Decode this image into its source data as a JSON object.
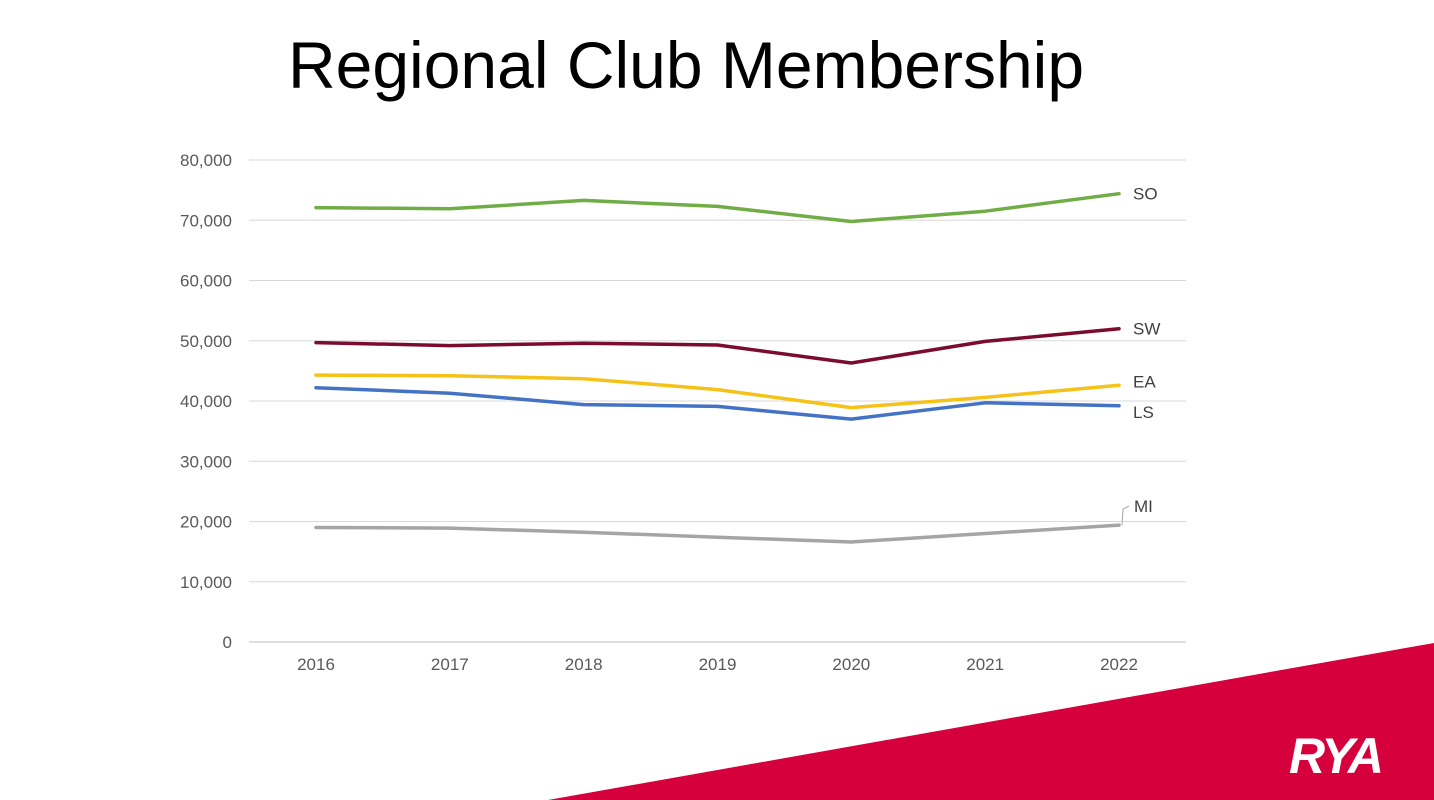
{
  "slide": {
    "title": "Regional Club Membership"
  },
  "brand": {
    "logo_text": "RYA",
    "banner_color": "#d6003c"
  },
  "chart_data": {
    "type": "line",
    "title": "Regional Club Membership",
    "xlabel": "",
    "ylabel": "",
    "x": [
      "2016",
      "2017",
      "2018",
      "2019",
      "2020",
      "2021",
      "2022"
    ],
    "ylim": [
      0,
      80000
    ],
    "yticks": [
      0,
      10000,
      20000,
      30000,
      40000,
      50000,
      60000,
      70000,
      80000
    ],
    "ytick_labels": [
      "0",
      "10,000",
      "20,000",
      "30,000",
      "40,000",
      "50,000",
      "60,000",
      "70,000",
      "80,000"
    ],
    "grid": true,
    "legend": "direct labels at line ends (right)",
    "series": [
      {
        "name": "SO",
        "color": "#70ad47",
        "values": [
          72100,
          71900,
          73300,
          72300,
          69800,
          71500,
          74400
        ]
      },
      {
        "name": "SW",
        "color": "#7b0c2d",
        "values": [
          49700,
          49200,
          49600,
          49300,
          46300,
          49900,
          52000
        ]
      },
      {
        "name": "EA",
        "color": "#f5c218",
        "values": [
          44300,
          44200,
          43700,
          41900,
          38900,
          40600,
          42600
        ]
      },
      {
        "name": "LS",
        "color": "#4472c4",
        "values": [
          42200,
          41300,
          39400,
          39100,
          37000,
          39700,
          39200
        ]
      },
      {
        "name": "MI",
        "color": "#a5a5a5",
        "values": [
          19000,
          18900,
          18200,
          17400,
          16600,
          18000,
          19400
        ]
      }
    ]
  }
}
